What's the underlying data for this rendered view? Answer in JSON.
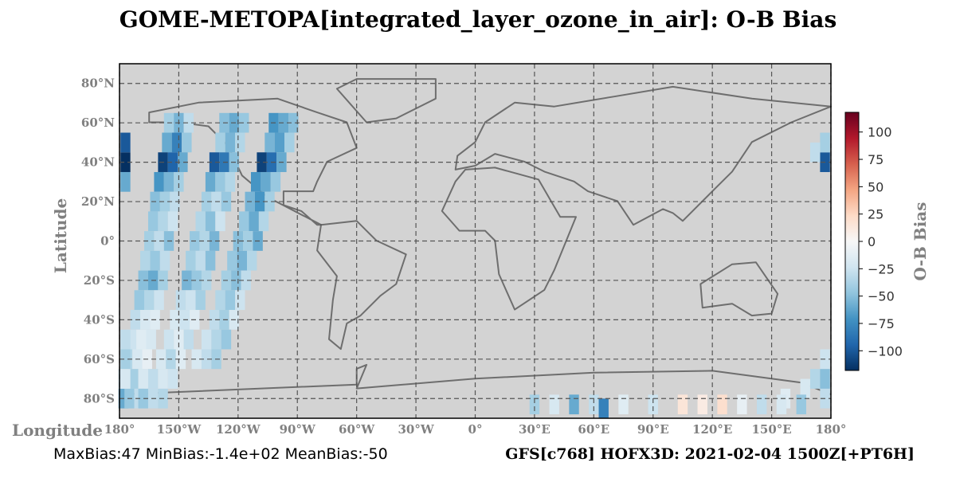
{
  "chart_data": {
    "type": "map",
    "title": "GOME-METOPA[integrated_layer_ozone_in_air]: O-B Bias",
    "x_label": "Longitude",
    "y_label": "Latitude",
    "colorbar_label": "O-B Bias",
    "footer_left": "MaxBias:47 MinBias:-1.4e+02 MeanBias:-50",
    "footer_right": "GFS[c768] HOFX3D: 2021-02-04 1500Z[+PT6H]",
    "xlim": [
      -180,
      180
    ],
    "ylim": [
      -90,
      90
    ],
    "xticks": [
      {
        "value": -180,
        "label": "180°"
      },
      {
        "value": -150,
        "label": "150°W"
      },
      {
        "value": -120,
        "label": "120°W"
      },
      {
        "value": -90,
        "label": "90°W"
      },
      {
        "value": -60,
        "label": "60°W"
      },
      {
        "value": -30,
        "label": "30°W"
      },
      {
        "value": 0,
        "label": "0°"
      },
      {
        "value": 30,
        "label": "30°E"
      },
      {
        "value": 60,
        "label": "60°E"
      },
      {
        "value": 90,
        "label": "90°E"
      },
      {
        "value": 120,
        "label": "120°E"
      },
      {
        "value": 150,
        "label": "150°E"
      },
      {
        "value": 180,
        "label": "180°"
      }
    ],
    "yticks": [
      {
        "value": -80,
        "label": "80°S"
      },
      {
        "value": -60,
        "label": "60°S"
      },
      {
        "value": -40,
        "label": "40°S"
      },
      {
        "value": -20,
        "label": "20°S"
      },
      {
        "value": 0,
        "label": "0°"
      },
      {
        "value": 20,
        "label": "20°N"
      },
      {
        "value": 40,
        "label": "40°N"
      },
      {
        "value": 60,
        "label": "60°N"
      },
      {
        "value": 80,
        "label": "80°N"
      }
    ],
    "grid": true,
    "clim": [
      -118,
      118
    ],
    "cticks": [
      {
        "value": -100,
        "label": "−100"
      },
      {
        "value": -75,
        "label": "−75"
      },
      {
        "value": -50,
        "label": "−50"
      },
      {
        "value": -25,
        "label": "−25"
      },
      0,
      25,
      50,
      75,
      100
    ],
    "colormap": [
      "#053061",
      "#2166ac",
      "#4393c3",
      "#92c5de",
      "#d1e5f0",
      "#f7f7f7",
      "#fddbc7",
      "#f4a582",
      "#d6604d",
      "#b2182b",
      "#67001f"
    ],
    "series": [
      {
        "x": [
          -155,
          -150,
          -145,
          -156,
          -151,
          -146,
          -158,
          -153,
          -148,
          -160,
          -155,
          -150,
          -162,
          -157,
          -152,
          -163,
          -158,
          -153,
          -165,
          -160,
          -155,
          -167,
          -162,
          -157,
          -168,
          -163,
          -158,
          -170,
          -165,
          -160,
          -172,
          -167,
          -162,
          -174,
          -169,
          -164,
          -176,
          -171,
          -166,
          -178,
          -173,
          -168,
          -178,
          -175,
          -170
        ],
        "y": [
          60,
          60,
          60,
          50,
          50,
          50,
          40,
          40,
          40,
          30,
          30,
          30,
          20,
          20,
          20,
          10,
          10,
          10,
          0,
          0,
          0,
          -10,
          -10,
          -10,
          -20,
          -20,
          -20,
          -30,
          -30,
          -30,
          -40,
          -40,
          -40,
          -50,
          -50,
          -50,
          -60,
          -60,
          -60,
          -70,
          -70,
          -70,
          -80,
          -80,
          -80
        ],
        "values": [
          -40,
          -55,
          -30,
          -60,
          -80,
          -45,
          -110,
          -95,
          -60,
          -70,
          -55,
          -40,
          -50,
          -40,
          -30,
          -45,
          -35,
          -25,
          -40,
          -30,
          -50,
          -35,
          -45,
          -30,
          -50,
          -60,
          -40,
          -45,
          -35,
          -25,
          -30,
          -20,
          -15,
          -25,
          -15,
          -20,
          -35,
          -20,
          -10,
          -30,
          -40,
          -20,
          -60,
          -45,
          -30
        ]
      },
      {
        "x": [
          -127,
          -122,
          -117,
          -129,
          -124,
          -119,
          -132,
          -127,
          -122,
          -134,
          -129,
          -124,
          -136,
          -131,
          -126,
          -139,
          -134,
          -129,
          -142,
          -137,
          -132,
          -144,
          -139,
          -134,
          -146,
          -141,
          -136,
          -149,
          -144,
          -139,
          -152,
          -147,
          -142,
          -155,
          -150,
          -145,
          -159,
          -154,
          -149,
          -163,
          -158,
          -153,
          -168,
          -163,
          -158
        ],
        "y": [
          60,
          60,
          60,
          50,
          50,
          50,
          40,
          40,
          40,
          30,
          30,
          30,
          20,
          20,
          20,
          10,
          10,
          10,
          0,
          0,
          0,
          -10,
          -10,
          -10,
          -20,
          -20,
          -20,
          -30,
          -30,
          -30,
          -40,
          -40,
          -40,
          -50,
          -50,
          -50,
          -60,
          -60,
          -60,
          -70,
          -70,
          -70,
          -80,
          -80,
          -80
        ],
        "values": [
          -50,
          -60,
          -45,
          -40,
          -55,
          -35,
          -100,
          -85,
          -50,
          -60,
          -45,
          -35,
          -40,
          -30,
          -45,
          -35,
          -50,
          -25,
          -45,
          -35,
          -55,
          -40,
          -30,
          -50,
          -55,
          -45,
          -35,
          -30,
          -25,
          -40,
          -20,
          -25,
          -15,
          -25,
          -15,
          -30,
          -20,
          -35,
          -15,
          -30,
          -20,
          -25,
          -45,
          -30,
          -35
        ]
      },
      {
        "x": [
          -102,
          -97,
          -92,
          -104,
          -99,
          -94,
          -108,
          -103,
          -98,
          -111,
          -106,
          -101,
          -114,
          -109,
          -104,
          -117,
          -112,
          -107,
          -120,
          -115,
          -110,
          -123,
          -118,
          -113,
          -126,
          -121,
          -116,
          -129,
          -124,
          -119,
          -132,
          -127,
          -122,
          -136,
          -131,
          -126,
          -141,
          -136,
          -131
        ],
        "y": [
          60,
          60,
          60,
          50,
          50,
          50,
          40,
          40,
          40,
          30,
          30,
          30,
          20,
          20,
          20,
          10,
          10,
          10,
          0,
          0,
          0,
          -10,
          -10,
          -10,
          -20,
          -20,
          -20,
          -30,
          -30,
          -30,
          -40,
          -40,
          -40,
          -50,
          -50,
          -50,
          -60,
          -60,
          -60
        ],
        "values": [
          -70,
          -60,
          -50,
          -55,
          -65,
          -40,
          -110,
          -90,
          -60,
          -70,
          -60,
          -45,
          -55,
          -70,
          -40,
          -45,
          -60,
          -35,
          -50,
          -40,
          -60,
          -45,
          -55,
          -35,
          -40,
          -50,
          -30,
          -35,
          -45,
          -25,
          -30,
          -40,
          -20,
          -25,
          -35,
          -45,
          -20,
          -30,
          -40
        ]
      },
      {
        "x": [
          -177,
          -177,
          -177,
          -177,
          -177,
          -177,
          177,
          177,
          172,
          177,
          172,
          177,
          167,
          177,
          157,
          30,
          40,
          50,
          60,
          65,
          75,
          90,
          105,
          115,
          125,
          135,
          145,
          155,
          165
        ],
        "y": [
          40,
          50,
          30,
          -50,
          -60,
          -70,
          40,
          50,
          45,
          -60,
          -70,
          -70,
          -75,
          -80,
          -80,
          -83,
          -83,
          -83,
          -83,
          -85,
          -83,
          -83,
          -83,
          -83,
          -83,
          -83,
          -83,
          -83,
          -83
        ],
        "values": [
          -120,
          -100,
          -60,
          -30,
          -40,
          -20,
          -100,
          -40,
          -30,
          -25,
          -35,
          -50,
          -20,
          -30,
          -15,
          -40,
          -20,
          -60,
          -30,
          -80,
          -15,
          -25,
          15,
          10,
          20,
          -10,
          -30,
          -20,
          -45
        ]
      }
    ]
  }
}
